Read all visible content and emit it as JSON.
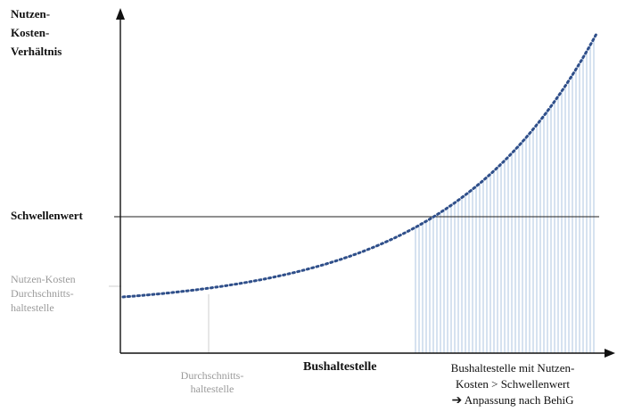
{
  "y_axis_label_lines": [
    "Nutzen-",
    "Kosten-",
    "Verhältnis"
  ],
  "threshold_label": "Schwellenwert",
  "avg_ratio_label_lines": [
    "Nutzen-Kosten",
    "Durchschnitts-",
    "haltestelle"
  ],
  "avg_stop_label_lines": [
    "Durchschnitts-",
    "haltestelle"
  ],
  "x_axis_label": "Bushaltestelle",
  "right_note": {
    "line1": "Bushaltestelle mit Nutzen-",
    "line2": "Kosten  > Schwellenwert",
    "arrow": "➔",
    "line3": "Anpassung nach BehiG"
  },
  "colors": {
    "axis": "#111111",
    "curve": "#2f4f8a",
    "shading": "#aec4e2",
    "guide": "#cfcfcf",
    "grey_text": "#9a9a9a"
  }
}
